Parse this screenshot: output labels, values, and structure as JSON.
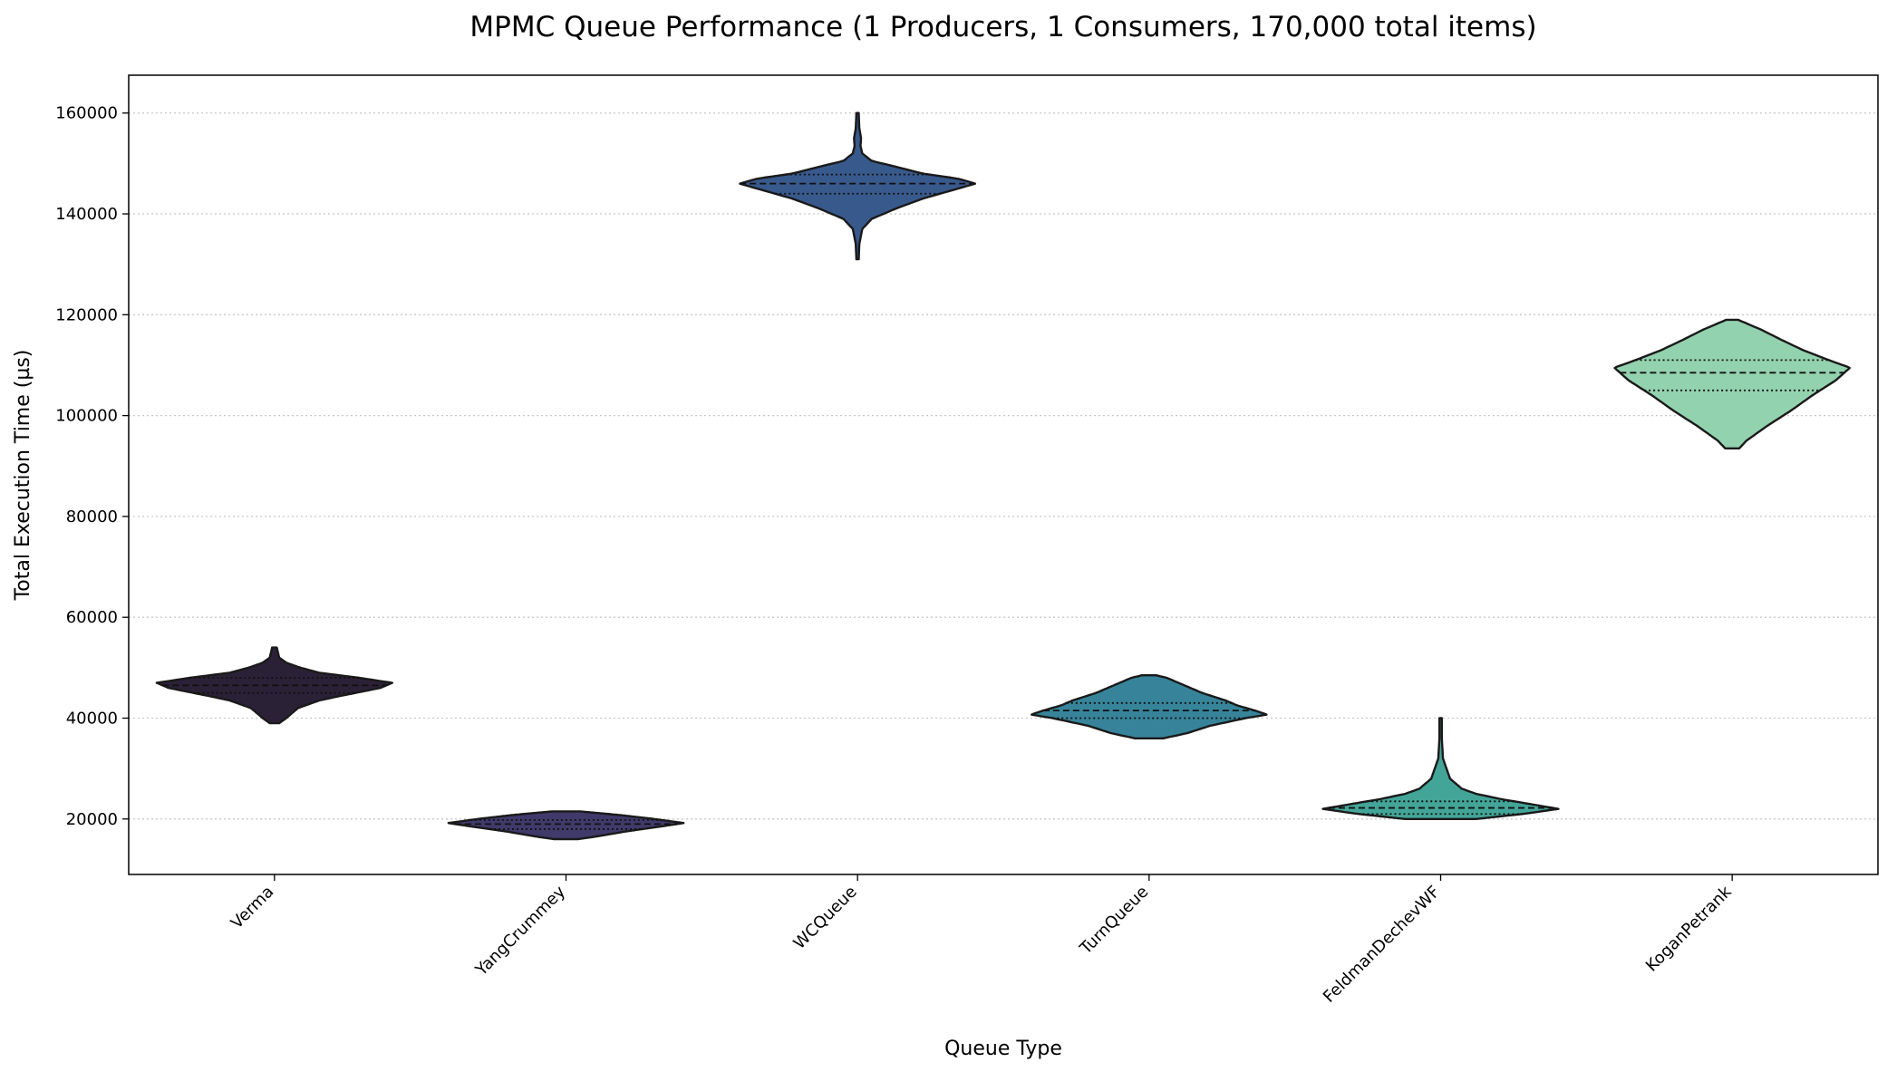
{
  "chart_data": {
    "type": "violin",
    "title": "MPMC Queue Performance (1 Producers, 1 Consumers, 170,000 total items)",
    "xlabel": "Queue Type",
    "ylabel": "Total Execution Time (µs)",
    "ylim": [
      9000,
      167500
    ],
    "yticks": [
      20000,
      40000,
      60000,
      80000,
      100000,
      120000,
      140000,
      160000
    ],
    "ytick_labels": [
      "20000",
      "40000",
      "60000",
      "80000",
      "100000",
      "120000",
      "140000",
      "160000"
    ],
    "grid": "y-dotted",
    "categories": [
      "Verma",
      "YangCrummey",
      "WCQueue",
      "TurnQueue",
      "FeldmanDechevWF",
      "KoganPetrank"
    ],
    "series": [
      {
        "category": "Verma",
        "color": "#2b2137",
        "min": 39000,
        "q1": 45000,
        "median": 46500,
        "q3": 48000,
        "max": 54000,
        "profile": [
          [
            39000,
            0.04
          ],
          [
            40000,
            0.1
          ],
          [
            42000,
            0.2
          ],
          [
            43500,
            0.38
          ],
          [
            44500,
            0.58
          ],
          [
            46000,
            0.9
          ],
          [
            47000,
            1.0
          ],
          [
            48000,
            0.72
          ],
          [
            49000,
            0.38
          ],
          [
            50000,
            0.22
          ],
          [
            51000,
            0.1
          ],
          [
            52000,
            0.04
          ],
          [
            54000,
            0.02
          ]
        ]
      },
      {
        "category": "YangCrummey",
        "color": "#403a6b",
        "min": 16000,
        "q1": 18000,
        "median": 19000,
        "q3": 19800,
        "max": 21500,
        "profile": [
          [
            16000,
            0.1
          ],
          [
            16500,
            0.25
          ],
          [
            17500,
            0.5
          ],
          [
            18500,
            0.8
          ],
          [
            19200,
            1.0
          ],
          [
            20000,
            0.75
          ],
          [
            20800,
            0.45
          ],
          [
            21500,
            0.12
          ]
        ]
      },
      {
        "category": "WCQueue",
        "color": "#38598c",
        "min": 131000,
        "q1": 144000,
        "median": 146000,
        "q3": 147800,
        "max": 160000,
        "profile": [
          [
            131000,
            0.01
          ],
          [
            134000,
            0.015
          ],
          [
            137000,
            0.04
          ],
          [
            139000,
            0.12
          ],
          [
            141000,
            0.32
          ],
          [
            143000,
            0.55
          ],
          [
            145000,
            0.85
          ],
          [
            146000,
            1.0
          ],
          [
            147000,
            0.85
          ],
          [
            148000,
            0.55
          ],
          [
            149500,
            0.3
          ],
          [
            150500,
            0.12
          ],
          [
            152000,
            0.04
          ],
          [
            153500,
            0.025
          ],
          [
            155000,
            0.03
          ],
          [
            157000,
            0.015
          ],
          [
            160000,
            0.01
          ]
        ]
      },
      {
        "category": "TurnQueue",
        "color": "#37849a",
        "min": 36000,
        "q1": 40000,
        "median": 41500,
        "q3": 43000,
        "max": 48500,
        "profile": [
          [
            36000,
            0.12
          ],
          [
            37000,
            0.32
          ],
          [
            38500,
            0.52
          ],
          [
            40000,
            0.82
          ],
          [
            40700,
            1.0
          ],
          [
            41500,
            0.9
          ],
          [
            42500,
            0.75
          ],
          [
            43500,
            0.65
          ],
          [
            45000,
            0.45
          ],
          [
            46500,
            0.3
          ],
          [
            48000,
            0.15
          ],
          [
            48500,
            0.06
          ]
        ]
      },
      {
        "category": "FeldmanDechevWF",
        "color": "#43a597",
        "min": 20000,
        "q1": 21000,
        "median": 22200,
        "q3": 23500,
        "max": 40000,
        "profile": [
          [
            20000,
            0.3
          ],
          [
            21000,
            0.7
          ],
          [
            22000,
            1.0
          ],
          [
            23000,
            0.75
          ],
          [
            24000,
            0.5
          ],
          [
            25000,
            0.3
          ],
          [
            26000,
            0.18
          ],
          [
            28000,
            0.08
          ],
          [
            30000,
            0.05
          ],
          [
            32000,
            0.02
          ],
          [
            36000,
            0.01
          ],
          [
            40000,
            0.01
          ]
        ]
      },
      {
        "category": "KoganPetrank",
        "color": "#93d2ae",
        "min": 93500,
        "q1": 105000,
        "median": 108500,
        "q3": 111000,
        "max": 119000,
        "profile": [
          [
            93500,
            0.06
          ],
          [
            95000,
            0.12
          ],
          [
            98000,
            0.3
          ],
          [
            101000,
            0.5
          ],
          [
            104000,
            0.68
          ],
          [
            107000,
            0.88
          ],
          [
            109500,
            1.0
          ],
          [
            111000,
            0.82
          ],
          [
            113000,
            0.6
          ],
          [
            115000,
            0.42
          ],
          [
            117000,
            0.25
          ],
          [
            118500,
            0.1
          ],
          [
            119000,
            0.05
          ]
        ]
      }
    ]
  }
}
